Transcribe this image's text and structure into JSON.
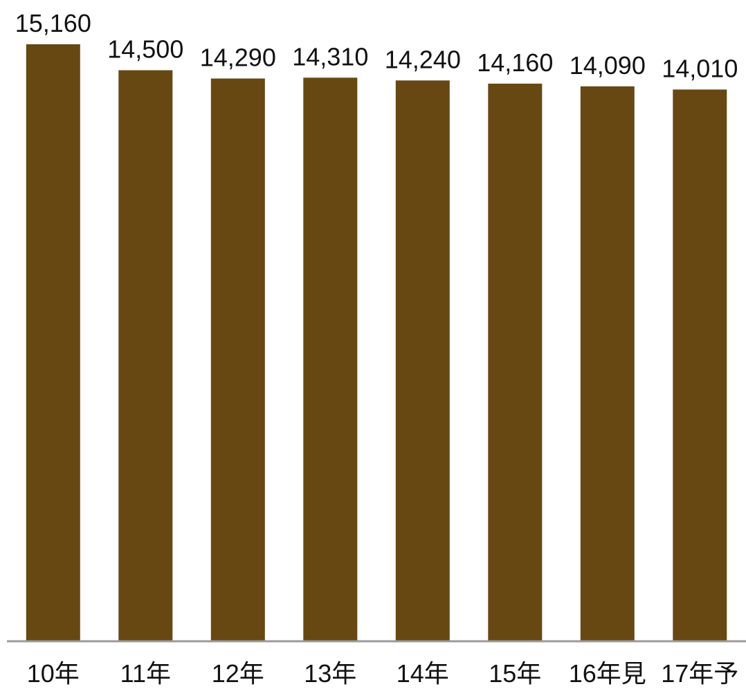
{
  "chart_data": {
    "type": "bar",
    "categories": [
      "10年",
      "11年",
      "12年",
      "13年",
      "14年",
      "15年",
      "16年見",
      "17年予"
    ],
    "values": [
      15160,
      14500,
      14290,
      14310,
      14240,
      14160,
      14090,
      14010
    ],
    "data_labels": [
      "15,160",
      "14,500",
      "14,290",
      "14,310",
      "14,240",
      "14,160",
      "14,090",
      "14,010"
    ],
    "title": "",
    "xlabel": "",
    "ylabel": "",
    "ylim": [
      0,
      15160
    ],
    "grid": false,
    "legend": "none",
    "bar_color": "#674813",
    "axis_color": "#9a9a9a"
  }
}
